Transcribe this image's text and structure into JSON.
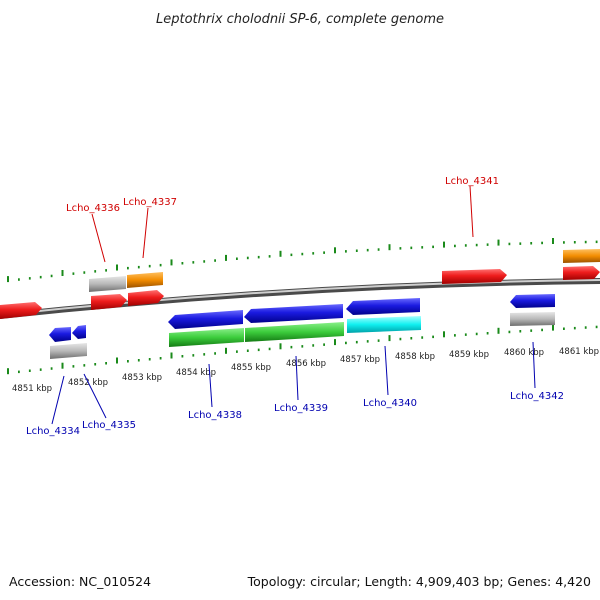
{
  "title": "Leptothrix cholodnii SP-6, complete genome",
  "footer": {
    "accession": "Accession: NC_010524",
    "topology": "Topology: circular; Length: 4,909,403 bp; Genes: 4,420"
  },
  "scale_labels": [
    "4851 kbp",
    "4852 kbp",
    "4853 kbp",
    "4854 kbp",
    "4855 kbp",
    "4856 kbp",
    "4857 kbp",
    "4858 kbp",
    "4859 kbp",
    "4860 kbp",
    "4861 kbp"
  ],
  "gene_labels": {
    "lcho_4334": "Lcho_4334",
    "lcho_4335": "Lcho_4335",
    "lcho_4336": "Lcho_4336",
    "lcho_4337": "Lcho_4337",
    "lcho_4338": "Lcho_4338",
    "lcho_4339": "Lcho_4339",
    "lcho_4340": "Lcho_4340",
    "lcho_4341": "Lcho_4341",
    "lcho_4342": "Lcho_4342"
  },
  "colors": {
    "forward_cds": "#e8141c",
    "reverse_cds": "#1414d8",
    "rna": "#f28c00",
    "gene": "#b8b8b8",
    "gene_reverse": "#aaaaaa",
    "green_feature": "#3ccc3c",
    "cyan_feature": "#10f0f0",
    "backbone": "#8a8a8a",
    "ticks": "#1a8a1a",
    "label_red": "#d00000",
    "label_blue": "#0000b0"
  }
}
